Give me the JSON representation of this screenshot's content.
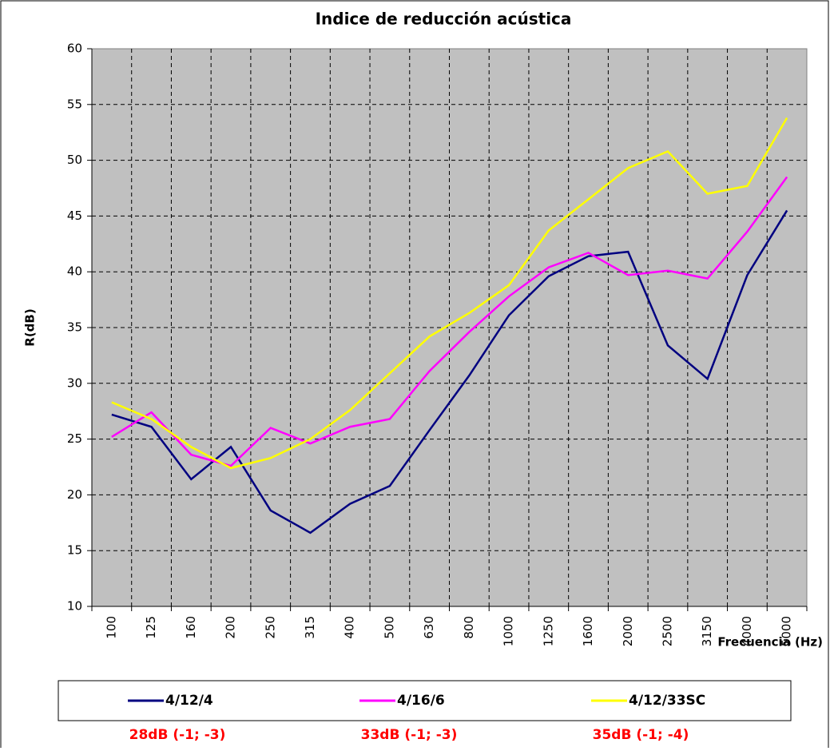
{
  "chart_data": {
    "type": "line",
    "title": "Indice de reducción acústica",
    "y_label": "R(dB)",
    "x_label": "Frecuencia (Hz)",
    "categories": [
      "100",
      "125",
      "160",
      "200",
      "250",
      "315",
      "400",
      "500",
      "630",
      "800",
      "1000",
      "1250",
      "1600",
      "2000",
      "2500",
      "3150",
      "4000",
      "5000"
    ],
    "series": [
      {
        "name": "4/12/4",
        "color": "#000080",
        "values": [
          27.2,
          26.1,
          21.4,
          24.3,
          18.6,
          16.6,
          19.2,
          20.8,
          25.8,
          30.7,
          36.1,
          39.6,
          41.4,
          41.8,
          33.4,
          30.4,
          39.7,
          45.5
        ]
      },
      {
        "name": "4/16/6",
        "color": "#ff00ff",
        "values": [
          25.2,
          27.4,
          23.6,
          22.6,
          26.0,
          24.6,
          26.1,
          26.8,
          31.1,
          34.6,
          37.8,
          40.4,
          41.7,
          39.7,
          40.1,
          39.4,
          43.6,
          48.5
        ]
      },
      {
        "name": "4/12/33SC",
        "color": "#ffff00",
        "values": [
          28.3,
          26.8,
          24.3,
          22.4,
          23.3,
          25.0,
          27.6,
          30.9,
          34.2,
          36.3,
          38.8,
          43.7,
          46.5,
          49.3,
          50.8,
          47.0,
          47.7,
          53.8
        ]
      }
    ],
    "ylim": [
      10,
      60
    ],
    "yticks": [
      10,
      15,
      20,
      25,
      30,
      35,
      40,
      45,
      50,
      55,
      60
    ],
    "grid": true,
    "annotations": [
      "28dB (-1; -3)",
      "33dB (-1; -3)",
      "35dB (-1; -4)"
    ]
  }
}
